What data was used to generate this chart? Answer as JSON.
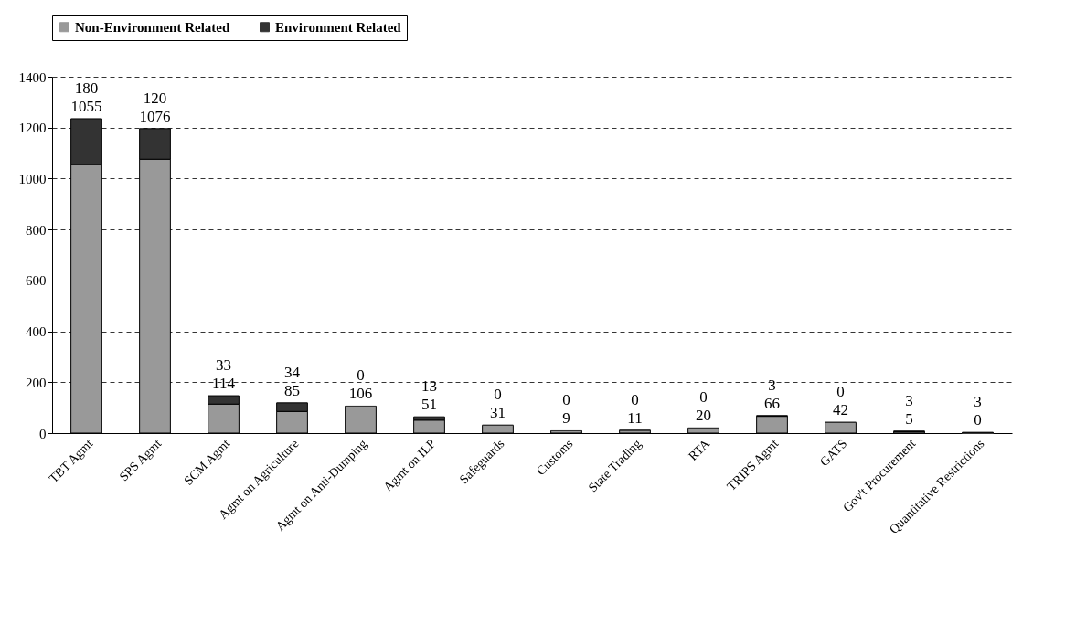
{
  "chart_data": {
    "type": "bar",
    "stacked": true,
    "categories": [
      "TBT Agmt",
      "SPS Agmt",
      "SCM Agmt",
      "Agmt on Agriculture",
      "Agmt on Anti-Dumping",
      "Agmt on ILP",
      "Safeguards",
      "Customs",
      "State Trading",
      "RTA",
      "TRIPS Agmt",
      "GATS",
      "Gov't Procurement",
      "Quantitative Restrictions"
    ],
    "series": [
      {
        "name": "Non-Environment Related",
        "color": "#999999",
        "values": [
          1055,
          1076,
          114,
          85,
          106,
          51,
          31,
          9,
          11,
          20,
          66,
          42,
          5,
          0
        ]
      },
      {
        "name": "Environment Related",
        "color": "#333333",
        "values": [
          180,
          120,
          33,
          34,
          0,
          13,
          0,
          0,
          0,
          0,
          3,
          0,
          3,
          3
        ]
      }
    ],
    "ylim": [
      0,
      1400
    ],
    "yticks": [
      0,
      200,
      400,
      600,
      800,
      1000,
      1200,
      1400
    ],
    "grid": "y",
    "legend": "top",
    "data_labels": true
  }
}
